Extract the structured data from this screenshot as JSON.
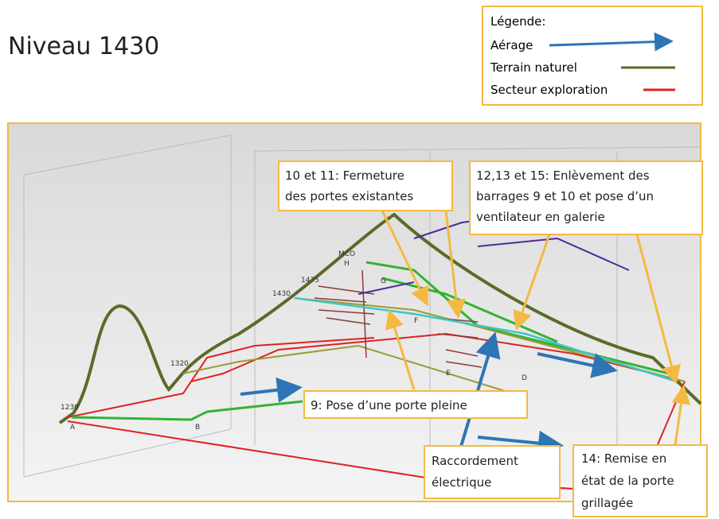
{
  "title": "Niveau 1430",
  "legend": {
    "title": "Légende:",
    "items": [
      "Aérage",
      "Terrain naturel",
      "Secteur exploration"
    ]
  },
  "scene_labels": [
    "MCO",
    "1475",
    "1430",
    "1320",
    "1230",
    "A",
    "B",
    "D",
    "E",
    "F",
    "G",
    "H"
  ],
  "callouts": [
    {
      "lines": [
        "10 et 11: Fermeture",
        "des portes existantes"
      ]
    },
    {
      "lines": [
        "12,13 et 15: Enlèvement des",
        "barrages 9 et 10 et pose d’un",
        "ventilateur en galerie"
      ]
    },
    {
      "lines": [
        "9: Pose d’une porte pleine"
      ]
    },
    {
      "lines": [
        "Raccordement",
        "électrique"
      ]
    },
    {
      "lines": [
        "14: Remise en",
        "état de la porte",
        "grillagée"
      ]
    }
  ]
}
